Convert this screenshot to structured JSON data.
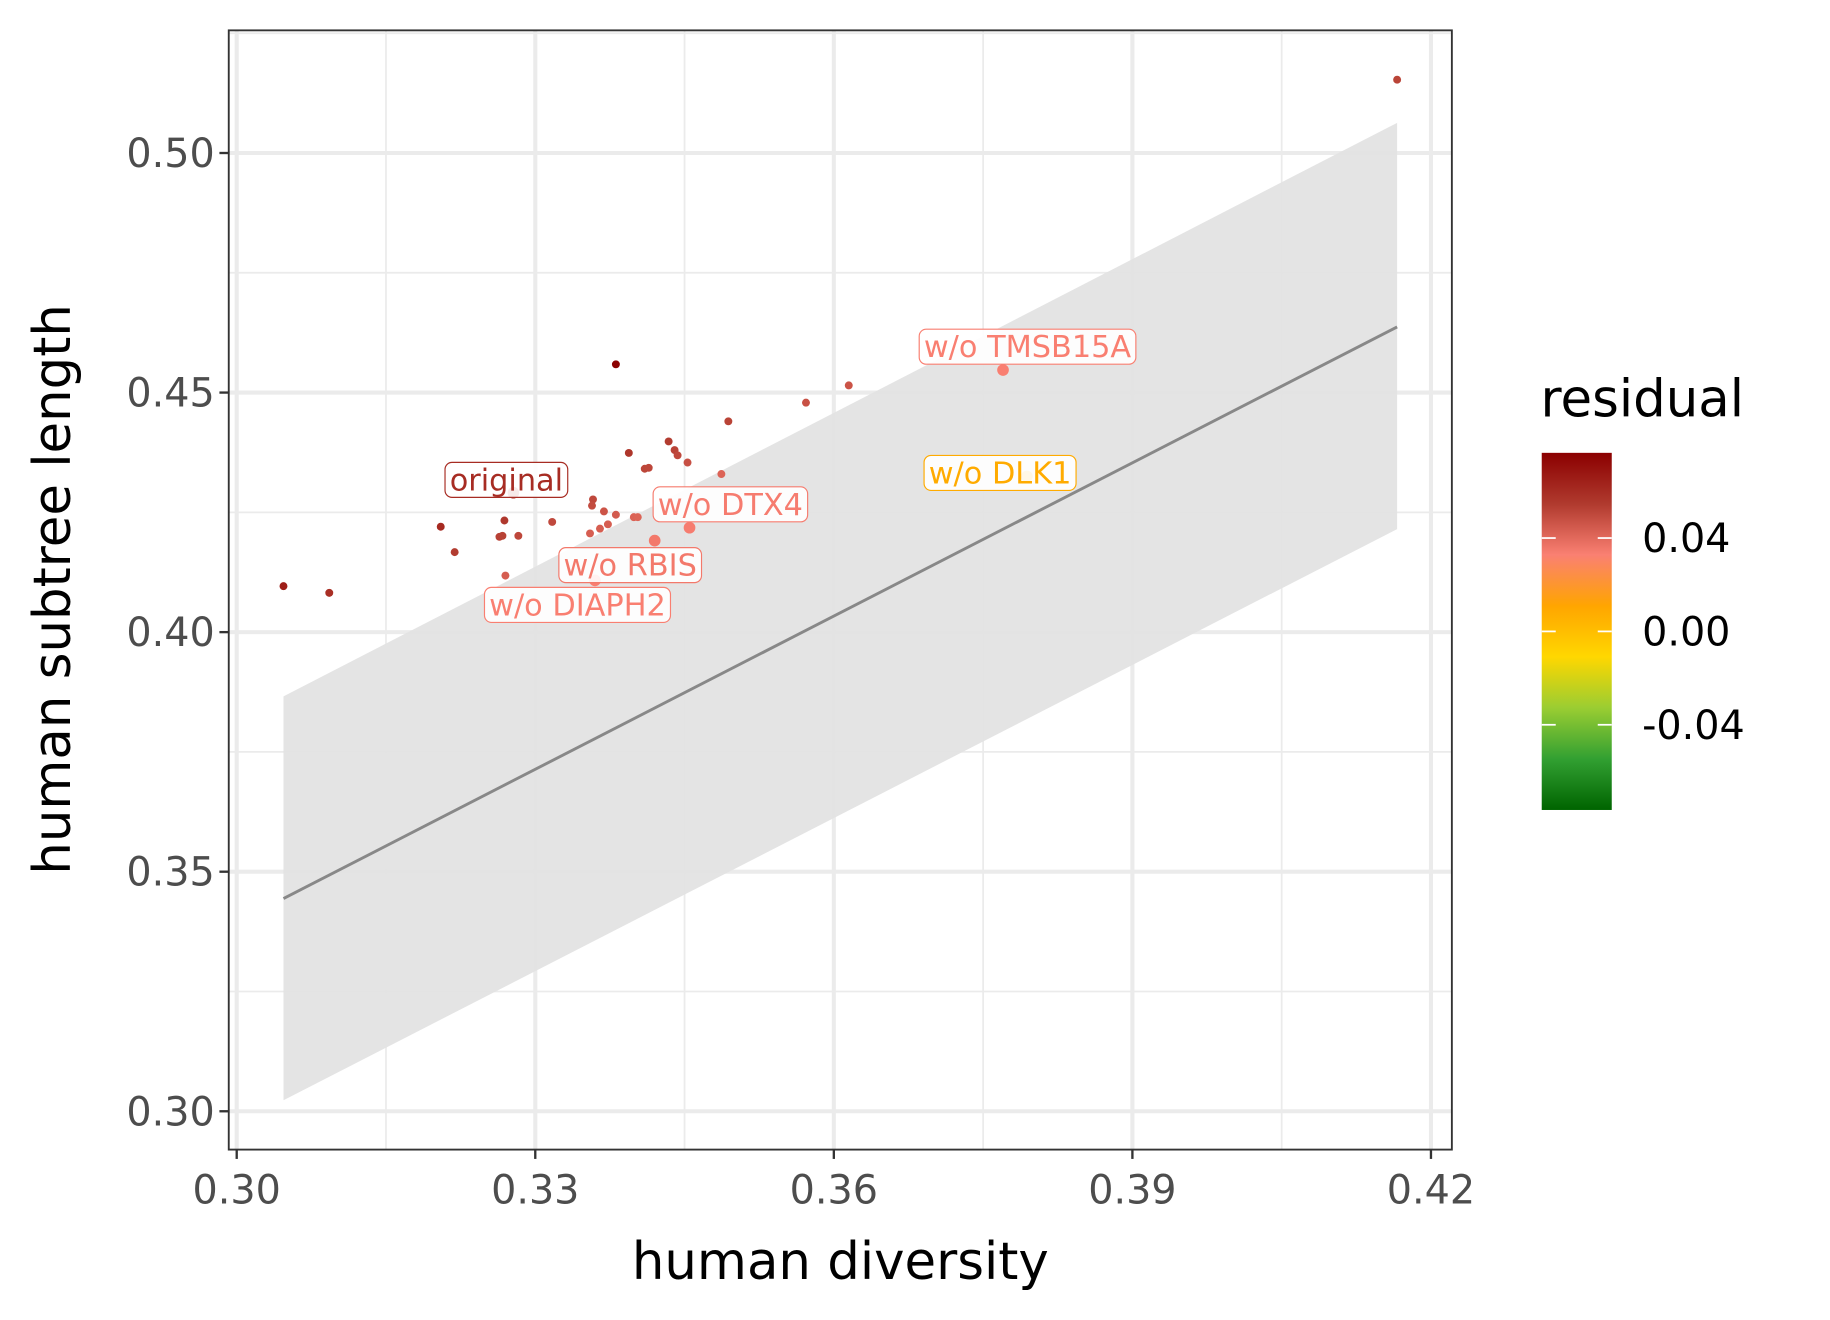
{
  "chart_data": {
    "type": "scatter",
    "title": "",
    "xlabel": "human diversity",
    "ylabel": "human subtree length",
    "xlim": [
      0.2992,
      0.4221
    ],
    "ylim": [
      0.292,
      0.5256
    ],
    "xticks": [
      0.3,
      0.33,
      0.36,
      0.39,
      0.42
    ],
    "xtick_labels": [
      "0.30",
      "0.33",
      "0.36",
      "0.39",
      "0.42"
    ],
    "yticks": [
      0.3,
      0.35,
      0.4,
      0.45,
      0.5
    ],
    "ytick_labels": [
      "0.30",
      "0.35",
      "0.40",
      "0.45",
      "0.50"
    ],
    "grid": true,
    "regression": {
      "x": [
        0.3047,
        0.4166
      ],
      "y": [
        0.3444,
        0.4637
      ],
      "ci_upper": [
        0.3866,
        0.5063
      ],
      "ci_lower": [
        0.3023,
        0.4215
      ],
      "line_color": "#888888",
      "ribbon_color": "#e3e3e3"
    },
    "points": [
      {
        "x": 0.3047,
        "y": 0.4096
      },
      {
        "x": 0.3093,
        "y": 0.4082
      },
      {
        "x": 0.3205,
        "y": 0.422
      },
      {
        "x": 0.3219,
        "y": 0.4167
      },
      {
        "x": 0.3269,
        "y": 0.4233
      },
      {
        "x": 0.3264,
        "y": 0.4199
      },
      {
        "x": 0.3267,
        "y": 0.4201
      },
      {
        "x": 0.3283,
        "y": 0.4201
      },
      {
        "x": 0.327,
        "y": 0.4118
      },
      {
        "x": 0.3317,
        "y": 0.423
      },
      {
        "x": 0.3381,
        "y": 0.4559
      },
      {
        "x": 0.3394,
        "y": 0.4374
      },
      {
        "x": 0.341,
        "y": 0.4341
      },
      {
        "x": 0.3414,
        "y": 0.4343
      },
      {
        "x": 0.3434,
        "y": 0.4398
      },
      {
        "x": 0.344,
        "y": 0.438
      },
      {
        "x": 0.3443,
        "y": 0.4369
      },
      {
        "x": 0.3453,
        "y": 0.4354
      },
      {
        "x": 0.3487,
        "y": 0.433
      },
      {
        "x": 0.3494,
        "y": 0.444
      },
      {
        "x": 0.3572,
        "y": 0.4479
      },
      {
        "x": 0.3615,
        "y": 0.4515
      },
      {
        "x": 0.4166,
        "y": 0.5153
      },
      {
        "x": 0.3358,
        "y": 0.4277
      },
      {
        "x": 0.3357,
        "y": 0.4264
      },
      {
        "x": 0.3369,
        "y": 0.4252
      },
      {
        "x": 0.3381,
        "y": 0.4245
      },
      {
        "x": 0.3373,
        "y": 0.4225
      },
      {
        "x": 0.3365,
        "y": 0.4216
      },
      {
        "x": 0.3355,
        "y": 0.4206
      },
      {
        "x": 0.3399,
        "y": 0.424
      },
      {
        "x": 0.3403,
        "y": 0.424
      },
      {
        "x": 0.3278,
        "y": 0.4291,
        "label": "original"
      },
      {
        "x": 0.3455,
        "y": 0.4218,
        "label": "w/o DTX4"
      },
      {
        "x": 0.342,
        "y": 0.4191,
        "label": "w/o RBIS"
      },
      {
        "x": 0.336,
        "y": 0.4108,
        "label": "w/o DIAPH2"
      },
      {
        "x": 0.377,
        "y": 0.4547,
        "label": "w/o TMSB15A"
      },
      {
        "x": 0.3794,
        "y": 0.4325,
        "label": "w/o DLK1"
      }
    ],
    "label_offsets_note": "",
    "legend": {
      "title": "residual",
      "placement": "right",
      "range": [
        -0.0765,
        0.0765
      ],
      "ticks": [
        0.04,
        0.0,
        -0.04
      ],
      "tick_labels": [
        "0.04",
        "0.00",
        "-0.04"
      ],
      "colors": [
        "#006400",
        "#32a032",
        "#9acd32",
        "#ffd700",
        "#ffa500",
        "#fa8072",
        "#b03a2e",
        "#8b0000"
      ]
    }
  }
}
